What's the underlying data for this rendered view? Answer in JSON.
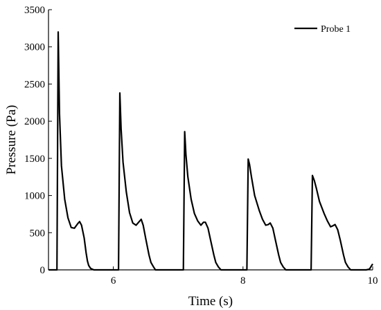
{
  "chart_data": {
    "type": "line",
    "title": "",
    "xlabel": "Time (s)",
    "ylabel": "Pressure (Pa)",
    "xlim": [
      5,
      10
    ],
    "ylim": [
      0,
      3500
    ],
    "x_ticks": [
      6,
      8,
      10
    ],
    "x_tick_labels": [
      "6",
      "8",
      "10"
    ],
    "y_ticks": [
      0,
      500,
      1000,
      1500,
      2000,
      2500,
      3000,
      3500
    ],
    "y_tick_labels": [
      "0",
      "500",
      "1000",
      "1500",
      "2000",
      "2500",
      "3000",
      "3500"
    ],
    "grid": false,
    "legend_position": "top-right",
    "series": [
      {
        "name": "Probe 1",
        "color": "#000000",
        "x": [
          5.0,
          5.13,
          5.15,
          5.17,
          5.2,
          5.25,
          5.3,
          5.35,
          5.4,
          5.45,
          5.48,
          5.51,
          5.55,
          5.58,
          5.6,
          5.62,
          5.65,
          5.7,
          6.0,
          6.08,
          6.1,
          6.12,
          6.15,
          6.2,
          6.25,
          6.3,
          6.35,
          6.4,
          6.43,
          6.46,
          6.5,
          6.55,
          6.58,
          6.62,
          6.65,
          7.0,
          7.08,
          7.1,
          7.12,
          7.15,
          7.2,
          7.25,
          7.3,
          7.35,
          7.39,
          7.42,
          7.46,
          7.5,
          7.55,
          7.58,
          7.62,
          7.66,
          8.0,
          8.06,
          8.08,
          8.1,
          8.13,
          8.18,
          8.25,
          8.3,
          8.35,
          8.39,
          8.42,
          8.46,
          8.5,
          8.55,
          8.58,
          8.62,
          8.66,
          9.0,
          9.05,
          9.07,
          9.1,
          9.13,
          9.18,
          9.25,
          9.3,
          9.35,
          9.38,
          9.42,
          9.46,
          9.5,
          9.55,
          9.58,
          9.62,
          9.66,
          9.9,
          9.95,
          10.0
        ],
        "y": [
          0,
          0,
          3200,
          2100,
          1400,
          950,
          700,
          570,
          560,
          620,
          650,
          600,
          430,
          230,
          120,
          60,
          20,
          0,
          0,
          0,
          2380,
          1900,
          1450,
          1050,
          770,
          630,
          600,
          650,
          680,
          600,
          420,
          200,
          100,
          40,
          0,
          0,
          0,
          1860,
          1550,
          1250,
          950,
          760,
          660,
          600,
          640,
          640,
          560,
          400,
          200,
          100,
          40,
          0,
          0,
          0,
          1490,
          1420,
          1250,
          1000,
          800,
          680,
          600,
          610,
          630,
          560,
          400,
          200,
          100,
          40,
          0,
          0,
          0,
          1270,
          1200,
          1100,
          920,
          760,
          660,
          580,
          590,
          610,
          540,
          400,
          200,
          100,
          40,
          0,
          0,
          10,
          80
        ]
      }
    ]
  }
}
